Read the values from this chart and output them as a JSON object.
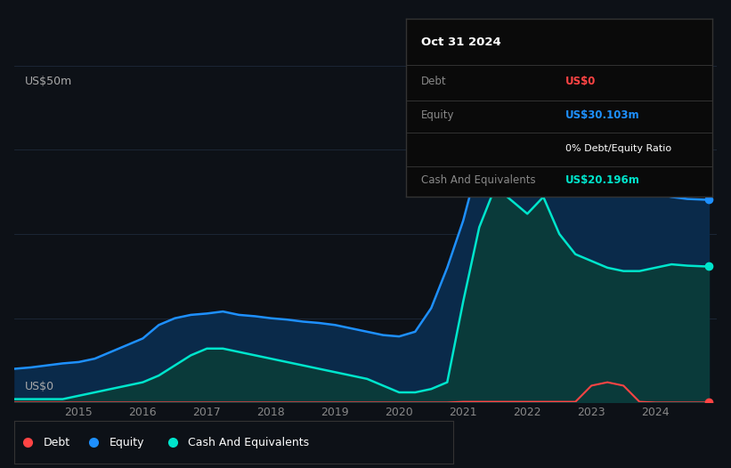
{
  "bg_color": "#0d1117",
  "plot_bg_color": "#0d1117",
  "grid_color": "#1e2a3a",
  "equity_color": "#1e90ff",
  "cash_color": "#00e5cc",
  "debt_color": "#ff4444",
  "equity_fill": "#0a2a4a",
  "cash_fill": "#0a3a3a",
  "ylim": [
    0,
    50
  ],
  "ylabel_top": "US$50m",
  "ylabel_bottom": "US$0",
  "years": [
    2014.0,
    2014.25,
    2014.5,
    2014.75,
    2015.0,
    2015.25,
    2015.5,
    2015.75,
    2016.0,
    2016.25,
    2016.5,
    2016.75,
    2017.0,
    2017.25,
    2017.5,
    2017.75,
    2018.0,
    2018.25,
    2018.5,
    2018.75,
    2019.0,
    2019.25,
    2019.5,
    2019.75,
    2020.0,
    2020.25,
    2020.5,
    2020.75,
    2021.0,
    2021.25,
    2021.5,
    2021.75,
    2022.0,
    2022.25,
    2022.5,
    2022.75,
    2023.0,
    2023.25,
    2023.5,
    2023.75,
    2024.0,
    2024.25,
    2024.5,
    2024.75,
    2024.83
  ],
  "equity": [
    5.0,
    5.2,
    5.5,
    5.8,
    6.0,
    6.5,
    7.5,
    8.5,
    9.5,
    11.5,
    12.5,
    13.0,
    13.2,
    13.5,
    13.0,
    12.8,
    12.5,
    12.3,
    12.0,
    11.8,
    11.5,
    11.0,
    10.5,
    10.0,
    9.8,
    10.5,
    14.0,
    20.0,
    27.0,
    36.0,
    41.0,
    42.0,
    43.0,
    47.0,
    43.0,
    40.0,
    41.5,
    40.5,
    32.0,
    31.5,
    31.0,
    30.5,
    30.2,
    30.1,
    30.103
  ],
  "cash": [
    0.5,
    0.5,
    0.5,
    0.5,
    1.0,
    1.5,
    2.0,
    2.5,
    3.0,
    4.0,
    5.5,
    7.0,
    8.0,
    8.0,
    7.5,
    7.0,
    6.5,
    6.0,
    5.5,
    5.0,
    4.5,
    4.0,
    3.5,
    2.5,
    1.5,
    1.5,
    2.0,
    3.0,
    15.0,
    26.0,
    32.0,
    30.0,
    28.0,
    30.5,
    25.0,
    22.0,
    21.0,
    20.0,
    19.5,
    19.5,
    20.0,
    20.5,
    20.3,
    20.2,
    20.196
  ],
  "debt": [
    0.0,
    0.0,
    0.0,
    0.0,
    0.0,
    0.0,
    0.0,
    0.0,
    0.0,
    0.0,
    0.0,
    0.0,
    0.0,
    0.0,
    0.0,
    0.0,
    0.0,
    0.0,
    0.0,
    0.0,
    0.0,
    0.0,
    0.0,
    0.0,
    0.0,
    0.0,
    0.0,
    0.0,
    0.1,
    0.1,
    0.1,
    0.1,
    0.1,
    0.1,
    0.1,
    0.1,
    2.5,
    3.0,
    2.5,
    0.1,
    0.0,
    0.0,
    0.0,
    0.0,
    0.0
  ],
  "xticks": [
    2015,
    2016,
    2017,
    2018,
    2019,
    2020,
    2021,
    2022,
    2023,
    2024
  ],
  "tooltip_bg": "#0a0a0a",
  "tooltip_border": "#333333",
  "tooltip_title": "Oct 31 2024",
  "tooltip_debt_label": "Debt",
  "tooltip_debt_value": "US$0",
  "tooltip_debt_color": "#ff4444",
  "tooltip_equity_label": "Equity",
  "tooltip_equity_value": "US$30.103m",
  "tooltip_equity_color": "#1e90ff",
  "tooltip_ratio_value": "0% Debt/Equity Ratio",
  "tooltip_cash_label": "Cash And Equivalents",
  "tooltip_cash_value": "US$20.196m",
  "tooltip_cash_color": "#00e5cc",
  "legend_debt_label": "Debt",
  "legend_equity_label": "Equity",
  "legend_cash_label": "Cash And Equivalents"
}
